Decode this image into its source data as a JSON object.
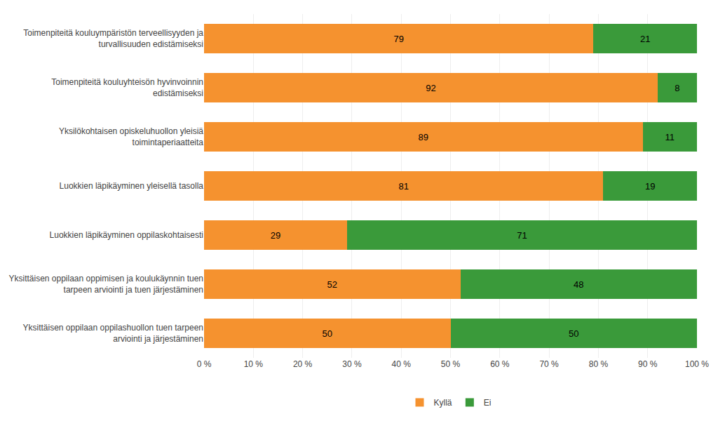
{
  "chart_data": {
    "type": "bar",
    "orientation": "horizontal",
    "stacked": true,
    "categories": [
      "Toimenpiteitä kouluympäristön terveellisyyden ja\nturvallisuuden edistämiseksi",
      "Toimenpiteitä kouluyhteisön hyvinvoinnin\nedistämiseksi",
      "Yksilökohtaisen opiskeluhuollon yleisiä\ntoimintaperiaatteita",
      "Luokkien läpikäyminen yleisellä tasolla",
      "Luokkien läpikäyminen oppilaskohtaisesti",
      "Yksittäisen oppilaan oppimisen ja koulukäynnin tuen\ntarpeen arviointi ja tuen järjestäminen",
      "Yksittäisen oppilaan oppilashuollon tuen tarpeen\narviointi ja järjestäminen"
    ],
    "series": [
      {
        "name": "Kyllä",
        "color": "#F5922F",
        "values": [
          79,
          92,
          89,
          81,
          29,
          52,
          50
        ]
      },
      {
        "name": "Ei",
        "color": "#3A9A3A",
        "values": [
          21,
          8,
          11,
          19,
          71,
          48,
          50
        ]
      }
    ],
    "xlim": [
      0,
      100
    ],
    "xticks": [
      {
        "value": 0,
        "label": "0 %"
      },
      {
        "value": 10,
        "label": "10 %"
      },
      {
        "value": 20,
        "label": "20 %"
      },
      {
        "value": 30,
        "label": "30 %"
      },
      {
        "value": 40,
        "label": "40 %"
      },
      {
        "value": 50,
        "label": "50 %"
      },
      {
        "value": 60,
        "label": "60 %"
      },
      {
        "value": 70,
        "label": "70 %"
      },
      {
        "value": 80,
        "label": "80 %"
      },
      {
        "value": 90,
        "label": "90 %"
      },
      {
        "value": 100,
        "label": "100 %"
      }
    ],
    "data_labels": true,
    "grid": true,
    "legend": "bottom"
  }
}
